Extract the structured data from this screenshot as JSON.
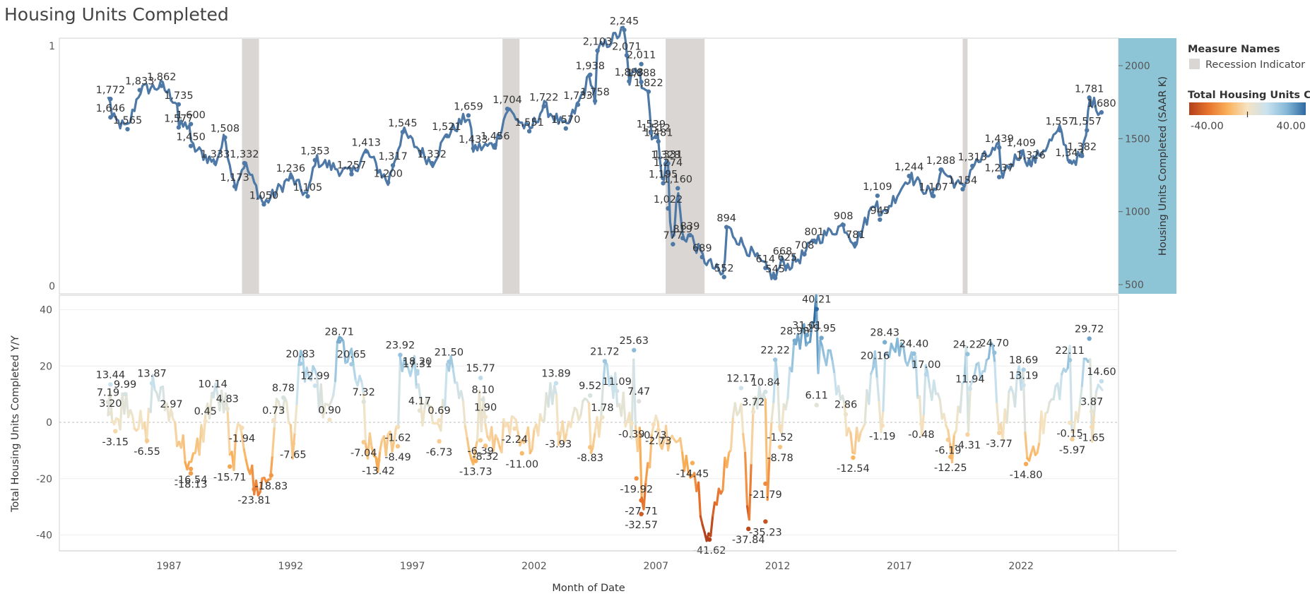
{
  "title": "Housing Units Completed",
  "colors": {
    "line_top": "#4e79a7",
    "recession": "#d9d6d3",
    "right_axis_bg": "#8ec5d6",
    "diverging": [
      "#b2401a",
      "#e8742e",
      "#f9b25c",
      "#f5e3c2",
      "#c9e2ee",
      "#86b9d8",
      "#2d6aa0"
    ]
  },
  "legend": {
    "measure_names_title": "Measure Names",
    "recession_label": "Recession Indicator",
    "color_title": "Total  Housing Units Co..",
    "color_min": "-40.00",
    "color_max": "40.00"
  },
  "chart_data": [
    {
      "type": "line",
      "name": "top",
      "ylabel_right": "Housing Units Completed (SAAR K)",
      "ylim_right": [
        500,
        2245
      ],
      "right_ticks": [
        "2000",
        "1500",
        "1000",
        "500"
      ],
      "left_ticks": [
        "1",
        "0"
      ],
      "recessions": [
        [
          1990.5,
          1991.2
        ],
        [
          2001.2,
          2001.9
        ],
        [
          2007.9,
          2009.5
        ],
        [
          2020.1,
          2020.3
        ]
      ],
      "labeled_points": [
        {
          "x": 1985.1,
          "y": 1772,
          "label": "1,772"
        },
        {
          "x": 1985.1,
          "y": 1646,
          "label": "1,646"
        },
        {
          "x": 1986.3,
          "y": 1833,
          "label": "1,833"
        },
        {
          "x": 1985.8,
          "y": 1565,
          "label": "1,565"
        },
        {
          "x": 1987.2,
          "y": 1862,
          "label": "1,862"
        },
        {
          "x": 1987.9,
          "y": 1735,
          "label": "1,735"
        },
        {
          "x": 1987.9,
          "y": 1577,
          "label": "1,577"
        },
        {
          "x": 1988.4,
          "y": 1600,
          "label": "1,600"
        },
        {
          "x": 1988.4,
          "y": 1450,
          "label": "1,450"
        },
        {
          "x": 1989.8,
          "y": 1508,
          "label": "1,508"
        },
        {
          "x": 1989.4,
          "y": 1333,
          "label": "1,333"
        },
        {
          "x": 1990.6,
          "y": 1332,
          "label": "1,332"
        },
        {
          "x": 1990.2,
          "y": 1173,
          "label": "1,173"
        },
        {
          "x": 1991.4,
          "y": 1050,
          "label": "1,050"
        },
        {
          "x": 1992.5,
          "y": 1236,
          "label": "1,236"
        },
        {
          "x": 1993.5,
          "y": 1353,
          "label": "1,353"
        },
        {
          "x": 1993.2,
          "y": 1105,
          "label": "1,105"
        },
        {
          "x": 1995.6,
          "y": 1413,
          "label": "1,413"
        },
        {
          "x": 1995.0,
          "y": 1257,
          "label": "1,257"
        },
        {
          "x": 1997.1,
          "y": 1545,
          "label": "1,545"
        },
        {
          "x": 1996.7,
          "y": 1317,
          "label": "1,317"
        },
        {
          "x": 1996.5,
          "y": 1200,
          "label": "1,200"
        },
        {
          "x": 1998.9,
          "y": 1521,
          "label": "1,521"
        },
        {
          "x": 1998.3,
          "y": 1332,
          "label": "1,332"
        },
        {
          "x": 1999.8,
          "y": 1659,
          "label": "1,659"
        },
        {
          "x": 2000.0,
          "y": 1433,
          "label": "1,433"
        },
        {
          "x": 2001.4,
          "y": 1704,
          "label": "1,704"
        },
        {
          "x": 2000.9,
          "y": 1456,
          "label": "1,456"
        },
        {
          "x": 2002.9,
          "y": 1722,
          "label": "1,722"
        },
        {
          "x": 2002.3,
          "y": 1551,
          "label": "1,551"
        },
        {
          "x": 2004.3,
          "y": 1733,
          "label": "1,733"
        },
        {
          "x": 2004.8,
          "y": 1938,
          "label": "1,938"
        },
        {
          "x": 2003.8,
          "y": 1570,
          "label": "1,570"
        },
        {
          "x": 2005.0,
          "y": 1758,
          "label": "1,758"
        },
        {
          "x": 2005.1,
          "y": 2103,
          "label": "2,103"
        },
        {
          "x": 2006.2,
          "y": 2245,
          "label": "2,245"
        },
        {
          "x": 2006.3,
          "y": 2071,
          "label": "2,071"
        },
        {
          "x": 2006.4,
          "y": 1893,
          "label": "1,893"
        },
        {
          "x": 2006.9,
          "y": 2011,
          "label": "2,011"
        },
        {
          "x": 2006.9,
          "y": 1888,
          "label": "1,888"
        },
        {
          "x": 2007.2,
          "y": 1822,
          "label": "1,822"
        },
        {
          "x": 2007.3,
          "y": 1539,
          "label": "1,539"
        },
        {
          "x": 2007.5,
          "y": 1512,
          "label": "1,512"
        },
        {
          "x": 2007.6,
          "y": 1481,
          "label": "1,481"
        },
        {
          "x": 2008.0,
          "y": 1331,
          "label": "1,331"
        },
        {
          "x": 2007.9,
          "y": 1328,
          "label": "1,328"
        },
        {
          "x": 2008.0,
          "y": 1274,
          "label": "1,274"
        },
        {
          "x": 2007.8,
          "y": 1195,
          "label": "1,195"
        },
        {
          "x": 2008.4,
          "y": 1160,
          "label": "1,160"
        },
        {
          "x": 2008.0,
          "y": 1022,
          "label": "1,022"
        },
        {
          "x": 2008.9,
          "y": 839,
          "label": "839"
        },
        {
          "x": 2008.6,
          "y": 819,
          "label": "819"
        },
        {
          "x": 2008.2,
          "y": 777,
          "label": "777"
        },
        {
          "x": 2010.4,
          "y": 894,
          "label": "894"
        },
        {
          "x": 2009.4,
          "y": 689,
          "label": "689"
        },
        {
          "x": 2010.3,
          "y": 552,
          "label": "552"
        },
        {
          "x": 2012.0,
          "y": 614,
          "label": "614"
        },
        {
          "x": 2012.4,
          "y": 545,
          "label": "545"
        },
        {
          "x": 2012.7,
          "y": 668,
          "label": "668"
        },
        {
          "x": 2012.9,
          "y": 625,
          "label": "625"
        },
        {
          "x": 2014.0,
          "y": 801,
          "label": "801"
        },
        {
          "x": 2013.6,
          "y": 708,
          "label": "708"
        },
        {
          "x": 2015.2,
          "y": 908,
          "label": "908"
        },
        {
          "x": 2015.7,
          "y": 781,
          "label": "781"
        },
        {
          "x": 2016.6,
          "y": 1109,
          "label": "1,109"
        },
        {
          "x": 2016.7,
          "y": 945,
          "label": "945"
        },
        {
          "x": 2017.9,
          "y": 1244,
          "label": "1,244"
        },
        {
          "x": 2019.2,
          "y": 1288,
          "label": "1,288"
        },
        {
          "x": 2018.9,
          "y": 1107,
          "label": "1,107"
        },
        {
          "x": 2020.5,
          "y": 1313,
          "label": "1,313"
        },
        {
          "x": 2020.1,
          "y": 1154,
          "label": "1,154"
        },
        {
          "x": 2021.6,
          "y": 1439,
          "label": "1,439"
        },
        {
          "x": 2021.6,
          "y": 1237,
          "label": "1,237"
        },
        {
          "x": 2022.5,
          "y": 1409,
          "label": "1,409"
        },
        {
          "x": 2022.9,
          "y": 1326,
          "label": "1,326"
        },
        {
          "x": 2024.1,
          "y": 1557,
          "label": "1,557"
        },
        {
          "x": 2024.5,
          "y": 1343,
          "label": "1,343"
        },
        {
          "x": 2025.3,
          "y": 1781,
          "label": "1,781"
        },
        {
          "x": 2025.8,
          "y": 1680,
          "label": "1,680"
        },
        {
          "x": 2025.2,
          "y": 1557,
          "label": "1,557"
        },
        {
          "x": 2025.0,
          "y": 1382,
          "label": "1,382"
        }
      ]
    },
    {
      "type": "line",
      "name": "bottom",
      "ylabel": "Total Housing Units Completed Y/Y",
      "xlabel": "Month of Date",
      "ylim": [
        -45,
        42
      ],
      "y_ticks": [
        40,
        20,
        0,
        -20,
        -40
      ],
      "x_ticks": [
        "1987",
        "1992",
        "1997",
        "2002",
        "2007",
        "2012",
        "2017",
        "2022"
      ],
      "labeled_points": [
        {
          "x": 1985.1,
          "y": 13.44,
          "label": "13.44"
        },
        {
          "x": 1985.0,
          "y": 7.19,
          "label": "7.19"
        },
        {
          "x": 1985.7,
          "y": 9.99,
          "label": "9.99"
        },
        {
          "x": 1985.1,
          "y": 3.2,
          "label": "3.20"
        },
        {
          "x": 1985.3,
          "y": -3.15,
          "label": "-3.15"
        },
        {
          "x": 1986.8,
          "y": 13.87,
          "label": "13.87"
        },
        {
          "x": 1987.6,
          "y": 2.97,
          "label": "2.97"
        },
        {
          "x": 1986.6,
          "y": -6.55,
          "label": "-6.55"
        },
        {
          "x": 1988.4,
          "y": -16.54,
          "label": "-16.54"
        },
        {
          "x": 1988.4,
          "y": -18.13,
          "label": "-18.13"
        },
        {
          "x": 1989.3,
          "y": 10.14,
          "label": "10.14"
        },
        {
          "x": 1989.0,
          "y": 0.45,
          "label": "0.45"
        },
        {
          "x": 1989.9,
          "y": 4.83,
          "label": "4.83"
        },
        {
          "x": 1990.0,
          "y": -15.71,
          "label": "-15.71"
        },
        {
          "x": 1990.5,
          "y": -1.94,
          "label": "-1.94"
        },
        {
          "x": 1991.0,
          "y": -23.81,
          "label": "-23.81"
        },
        {
          "x": 1991.8,
          "y": 0.73,
          "label": "0.73"
        },
        {
          "x": 1991.7,
          "y": -18.83,
          "label": "-18.83"
        },
        {
          "x": 1992.2,
          "y": 8.78,
          "label": "8.78"
        },
        {
          "x": 1992.9,
          "y": 20.83,
          "label": "20.83"
        },
        {
          "x": 1993.5,
          "y": 12.99,
          "label": "12.99"
        },
        {
          "x": 1992.6,
          "y": -7.65,
          "label": "-7.65"
        },
        {
          "x": 1994.1,
          "y": 0.9,
          "label": "0.90"
        },
        {
          "x": 1994.5,
          "y": 28.71,
          "label": "28.71"
        },
        {
          "x": 1995.0,
          "y": 20.65,
          "label": "20.65"
        },
        {
          "x": 1995.5,
          "y": 7.32,
          "label": "7.32"
        },
        {
          "x": 1995.5,
          "y": -7.04,
          "label": "-7.04"
        },
        {
          "x": 1996.1,
          "y": -13.42,
          "label": "-13.42"
        },
        {
          "x": 1997.0,
          "y": 23.92,
          "label": "23.92"
        },
        {
          "x": 1997.7,
          "y": 17.31,
          "label": "17.31"
        },
        {
          "x": 1997.7,
          "y": 18.2,
          "label": "18.20"
        },
        {
          "x": 1997.8,
          "y": 4.17,
          "label": "4.17"
        },
        {
          "x": 1996.9,
          "y": -1.62,
          "label": "-1.62"
        },
        {
          "x": 1996.9,
          "y": -8.49,
          "label": "-8.49"
        },
        {
          "x": 1999.0,
          "y": 21.5,
          "label": "21.50"
        },
        {
          "x": 1998.6,
          "y": 0.69,
          "label": "0.69"
        },
        {
          "x": 1998.6,
          "y": -6.73,
          "label": "-6.73"
        },
        {
          "x": 2000.3,
          "y": 15.77,
          "label": "15.77"
        },
        {
          "x": 2000.4,
          "y": 8.1,
          "label": "8.10"
        },
        {
          "x": 2000.5,
          "y": 1.9,
          "label": "1.90"
        },
        {
          "x": 2000.3,
          "y": -6.39,
          "label": "-6.39"
        },
        {
          "x": 2000.5,
          "y": -8.32,
          "label": "-8.32"
        },
        {
          "x": 2000.1,
          "y": -13.73,
          "label": "-13.73"
        },
        {
          "x": 2001.7,
          "y": -2.24,
          "label": "-2.24"
        },
        {
          "x": 2002.0,
          "y": -11.0,
          "label": "-11.00"
        },
        {
          "x": 2003.4,
          "y": 13.89,
          "label": "13.89"
        },
        {
          "x": 2003.5,
          "y": -3.93,
          "label": "-3.93"
        },
        {
          "x": 2004.8,
          "y": 9.52,
          "label": "9.52"
        },
        {
          "x": 2005.4,
          "y": 21.72,
          "label": "21.72"
        },
        {
          "x": 2005.9,
          "y": 11.09,
          "label": "11.09"
        },
        {
          "x": 2005.3,
          "y": 1.78,
          "label": "1.78"
        },
        {
          "x": 2004.8,
          "y": -8.83,
          "label": "-8.83"
        },
        {
          "x": 2006.5,
          "y": -0.39,
          "label": "-0.39"
        },
        {
          "x": 2006.6,
          "y": 25.63,
          "label": "25.63"
        },
        {
          "x": 2006.8,
          "y": 7.47,
          "label": "7.47"
        },
        {
          "x": 2007.4,
          "y": -0.73,
          "label": "-0.73"
        },
        {
          "x": 2007.6,
          "y": -2.73,
          "label": "-2.73"
        },
        {
          "x": 2006.7,
          "y": -19.92,
          "label": "-19.92"
        },
        {
          "x": 2006.9,
          "y": -27.71,
          "label": "-27.71"
        },
        {
          "x": 2006.9,
          "y": -32.57,
          "label": "-32.57"
        },
        {
          "x": 2009.0,
          "y": -14.45,
          "label": "-14.45"
        },
        {
          "x": 2009.7,
          "y": -41.62,
          "label": "-41.62"
        },
        {
          "x": 2011.0,
          "y": 12.17,
          "label": "12.17"
        },
        {
          "x": 2011.3,
          "y": -37.84,
          "label": "-37.84"
        },
        {
          "x": 2011.5,
          "y": 3.72,
          "label": "3.72"
        },
        {
          "x": 2012.0,
          "y": 10.84,
          "label": "10.84"
        },
        {
          "x": 2012.0,
          "y": -21.79,
          "label": "-21.79"
        },
        {
          "x": 2012.0,
          "y": -35.23,
          "label": "-35.23"
        },
        {
          "x": 2012.4,
          "y": 22.22,
          "label": "22.22"
        },
        {
          "x": 2012.6,
          "y": -1.52,
          "label": "-1.52"
        },
        {
          "x": 2012.6,
          "y": -8.78,
          "label": "-8.78"
        },
        {
          "x": 2013.2,
          "y": 28.98,
          "label": "28.98"
        },
        {
          "x": 2013.7,
          "y": 31.01,
          "label": "31.01"
        },
        {
          "x": 2014.1,
          "y": 40.21,
          "label": "40.21"
        },
        {
          "x": 2014.3,
          "y": 29.95,
          "label": "29.95"
        },
        {
          "x": 2014.1,
          "y": 6.11,
          "label": "6.11"
        },
        {
          "x": 2015.3,
          "y": 2.86,
          "label": "2.86"
        },
        {
          "x": 2015.6,
          "y": -12.54,
          "label": "-12.54"
        },
        {
          "x": 2016.5,
          "y": 20.16,
          "label": "20.16"
        },
        {
          "x": 2016.9,
          "y": 28.43,
          "label": "28.43"
        },
        {
          "x": 2016.8,
          "y": -1.19,
          "label": "-1.19"
        },
        {
          "x": 2018.1,
          "y": 24.4,
          "label": "24.40"
        },
        {
          "x": 2018.4,
          "y": -0.48,
          "label": "-0.48"
        },
        {
          "x": 2018.6,
          "y": 17.0,
          "label": "17.00"
        },
        {
          "x": 2019.5,
          "y": -6.19,
          "label": "-6.19"
        },
        {
          "x": 2019.6,
          "y": -12.25,
          "label": "-12.25"
        },
        {
          "x": 2020.3,
          "y": 24.22,
          "label": "24.22"
        },
        {
          "x": 2020.4,
          "y": 11.94,
          "label": "11.94"
        },
        {
          "x": 2020.3,
          "y": -4.31,
          "label": "-4.31"
        },
        {
          "x": 2021.4,
          "y": 24.7,
          "label": "24.70"
        },
        {
          "x": 2021.6,
          "y": -3.77,
          "label": "-3.77"
        },
        {
          "x": 2022.6,
          "y": 18.69,
          "label": "18.69"
        },
        {
          "x": 2022.6,
          "y": 13.19,
          "label": "13.19"
        },
        {
          "x": 2022.7,
          "y": -14.8,
          "label": "-14.80"
        },
        {
          "x": 2024.5,
          "y": 22.11,
          "label": "22.11"
        },
        {
          "x": 2024.5,
          "y": -0.15,
          "label": "-0.15"
        },
        {
          "x": 2024.6,
          "y": -5.97,
          "label": "-5.97"
        },
        {
          "x": 2025.3,
          "y": 29.72,
          "label": "29.72"
        },
        {
          "x": 2025.8,
          "y": 14.6,
          "label": "14.60"
        },
        {
          "x": 2025.4,
          "y": 3.87,
          "label": "3.87"
        },
        {
          "x": 2025.4,
          "y": -1.65,
          "label": "-1.65"
        }
      ]
    }
  ]
}
